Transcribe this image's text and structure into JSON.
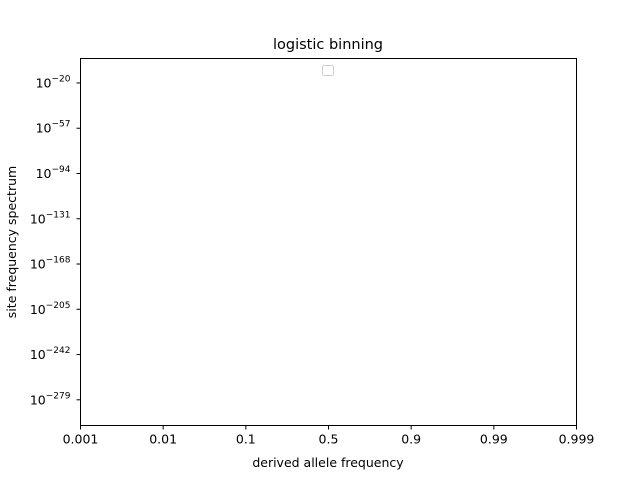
{
  "chart_data": {
    "type": "line",
    "title": "logistic binning",
    "xlabel": "derived allele frequency",
    "ylabel": "site frequency spectrum",
    "x_scale": "logit",
    "y_scale": "log",
    "x_ticks": [
      "0.001",
      "0.01",
      "0.1",
      "0.5",
      "0.9",
      "0.99",
      "0.999"
    ],
    "y_tick_exponents": [
      "−20",
      "−57",
      "−94",
      "−131",
      "−168",
      "−205",
      "−242",
      "−279"
    ],
    "y_tick_base": "10",
    "ylim_exponent": [
      -300,
      0
    ],
    "legend": {
      "placement": "upper center",
      "entries": []
    },
    "grid": false,
    "series": []
  }
}
